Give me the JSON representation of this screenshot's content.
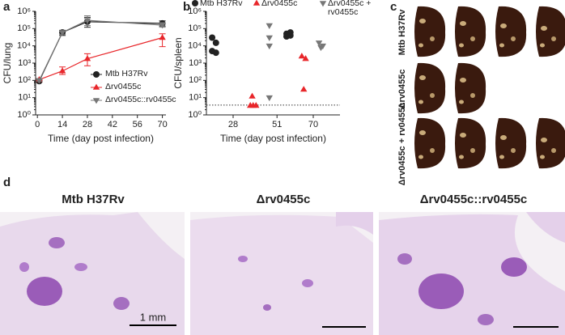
{
  "figure": {
    "panel_labels": [
      "a",
      "b",
      "c",
      "d"
    ],
    "c_row_labels": [
      "Mtb H37Rv",
      "Δrv0455c",
      "Δrv0455c + rv0455c"
    ],
    "d_titles": [
      "Mtb H37Rv",
      "Δrv0455c",
      "Δrv0455c::rv0455c"
    ],
    "scale_bar_label": "1 mm"
  },
  "chart_data": [
    {
      "type": "line",
      "x_label": "Time (day post infection)",
      "y_label": "CFU/lung",
      "log_y": true,
      "xlim": [
        -1,
        72
      ],
      "xticks": [
        0,
        14,
        28,
        42,
        56,
        70
      ],
      "ylim": [
        1,
        1000000
      ],
      "yticks": [
        {
          "value": 1,
          "label": "10⁰"
        },
        {
          "value": 10,
          "label": "10¹"
        },
        {
          "value": 100,
          "label": "10²"
        },
        {
          "value": 1000,
          "label": "10³"
        },
        {
          "value": 10000,
          "label": "10⁴"
        },
        {
          "value": 100000,
          "label": "10⁵"
        },
        {
          "value": 1000000,
          "label": "10⁶"
        }
      ],
      "legend": "lower right",
      "series": [
        {
          "name": "Mtb H37Rv",
          "color": "#222222",
          "marker": "circle",
          "x": [
            1,
            14,
            28,
            70
          ],
          "values": [
            90,
            60000,
            250000,
            200000
          ],
          "lower": [
            80,
            40000,
            120000,
            140000
          ],
          "upper": [
            100,
            80000,
            450000,
            280000
          ]
        },
        {
          "name": "Δrv0455c",
          "color": "#e8262a",
          "marker": "triangle-up",
          "x": [
            1,
            14,
            28,
            70
          ],
          "values": [
            110,
            350,
            1800,
            30000
          ],
          "lower": [
            100,
            220,
            700,
            9000
          ],
          "upper": [
            120,
            600,
            3500,
            50000
          ]
        },
        {
          "name": "Δrv0455c::rv0455c",
          "color": "#777777",
          "marker": "triangle-down",
          "x": [
            1,
            14,
            28,
            70
          ],
          "values": [
            100,
            60000,
            300000,
            160000
          ],
          "lower": [
            90,
            45000,
            150000,
            120000
          ],
          "upper": [
            110,
            75000,
            550000,
            220000
          ]
        }
      ]
    },
    {
      "type": "scatter",
      "x_label": "Time (day post infection)",
      "y_label": "CFU/spleen",
      "log_y": true,
      "xlim": [
        14,
        84
      ],
      "xticks": [
        28,
        51,
        70
      ],
      "ylim": [
        1,
        1000000
      ],
      "yticks": [
        {
          "value": 1,
          "label": "10⁰"
        },
        {
          "value": 10,
          "label": "10¹"
        },
        {
          "value": 100,
          "label": "10²"
        },
        {
          "value": 1000,
          "label": "10³"
        },
        {
          "value": 10000,
          "label": "10⁴"
        },
        {
          "value": 100000,
          "label": "10⁵"
        },
        {
          "value": 1000000,
          "label": "10⁶"
        }
      ],
      "detection_limit": 3.7,
      "legend": "top",
      "series": [
        {
          "name": "Mtb H37Rv",
          "color": "#222222",
          "marker": "circle",
          "x": [
            17,
            19,
            17,
            19,
            56,
            58,
            56,
            58
          ],
          "values": [
            30000,
            15000,
            5000,
            4000,
            50000,
            60000,
            35000,
            40000
          ]
        },
        {
          "name": "Δrv0455c",
          "color": "#e8262a",
          "marker": "triangle-up",
          "x": [
            38,
            37,
            38.5,
            40,
            64,
            66,
            65
          ],
          "values": [
            12,
            3.5,
            3.5,
            3.5,
            2500,
            1800,
            30
          ]
        },
        {
          "name": "Δrv0455c + rv0455c",
          "color": "#777777",
          "marker": "triangle-down",
          "x": [
            47,
            47,
            47,
            47,
            73,
            75,
            74
          ],
          "values": [
            150000,
            30000,
            10000,
            10,
            15000,
            10000,
            8000
          ]
        }
      ]
    }
  ]
}
